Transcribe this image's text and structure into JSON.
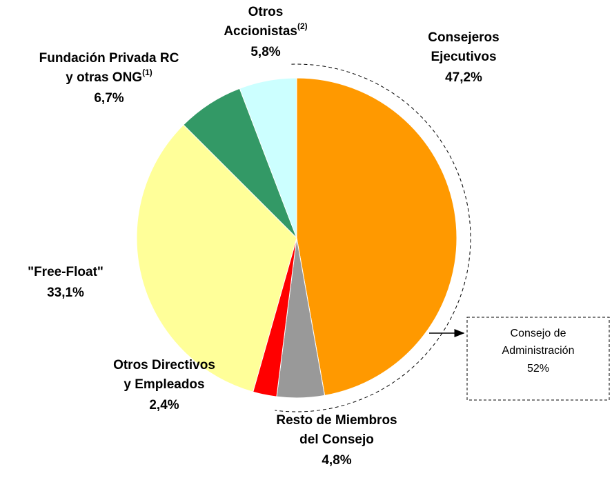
{
  "chart_data": {
    "type": "pie",
    "categories": [
      [
        "Consejeros",
        "Ejecutivos"
      ],
      [
        "Resto de Miembros",
        "del Consejo"
      ],
      [
        "Otros Directivos",
        "y Empleados"
      ],
      [
        "\"Free-Float\""
      ],
      [
        "Fundación Privada RC",
        "y otras ONG"
      ],
      [
        "Otros",
        "Accionistas"
      ]
    ],
    "label_notes": [
      null,
      null,
      null,
      null,
      "(1)",
      "(2)"
    ],
    "values": [
      47.2,
      4.8,
      2.4,
      33.1,
      6.7,
      5.8
    ],
    "value_labels": [
      "47,2%",
      "4,8%",
      "2,4%",
      "33,1%",
      "6,7%",
      "5,8%"
    ],
    "colors": [
      "#ff9900",
      "#999999",
      "#ff0000",
      "#ffff99",
      "#339966",
      "#ccffff"
    ],
    "annotation": {
      "text": [
        "Consejo de",
        "Administración"
      ],
      "value": 52,
      "value_label": "52%"
    }
  }
}
